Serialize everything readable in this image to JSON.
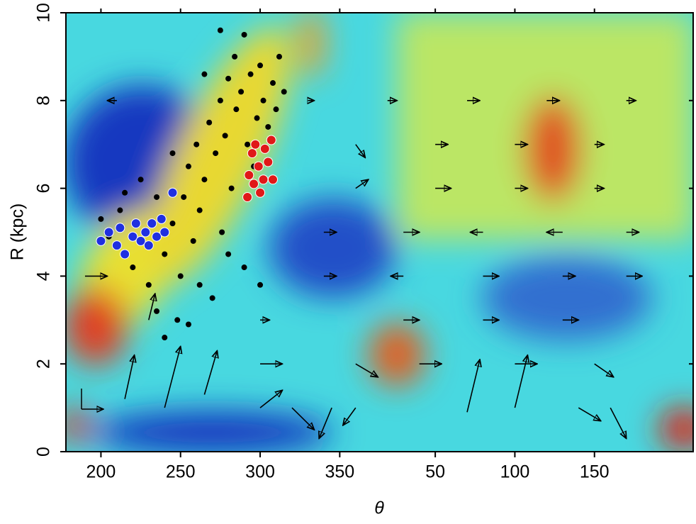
{
  "chart_data": {
    "type": "scatter",
    "xlabel": "θ",
    "ylabel": "R (kpc)",
    "xlim": [
      178,
      572
    ],
    "ylim": [
      0,
      10
    ],
    "xticks": [
      200,
      250,
      300,
      350,
      {
        "value": 410,
        "label": "50"
      },
      {
        "value": 460,
        "label": "100"
      },
      {
        "value": 510,
        "label": "150"
      }
    ],
    "yticks": [
      0,
      2,
      4,
      6,
      8,
      10
    ],
    "vectors": {
      "color": "#000000",
      "x": [
        210,
        330,
        380,
        430,
        480,
        530,
        360,
        410,
        460,
        510,
        360,
        410,
        460,
        510,
        340,
        390,
        440,
        490,
        530,
        190,
        340,
        390,
        440,
        490,
        530,
        230,
        300,
        390,
        440,
        490,
        300,
        360,
        400,
        460,
        510,
        215,
        240,
        265,
        300,
        320,
        345,
        360,
        430,
        460,
        500,
        520
      ],
      "y": [
        8,
        8,
        8,
        8,
        8,
        8,
        7,
        7,
        7,
        7,
        6,
        6,
        6,
        6,
        5,
        5,
        5,
        5,
        5,
        4,
        4,
        4,
        4,
        4,
        4,
        3,
        3,
        3,
        3,
        3,
        2,
        2,
        2,
        2,
        2,
        1.2,
        1.0,
        1.3,
        1.0,
        1.0,
        1.0,
        1.0,
        0.9,
        1.0,
        1.0,
        1.0
      ],
      "dx": [
        -6,
        4,
        6,
        8,
        8,
        6,
        6,
        8,
        8,
        6,
        8,
        10,
        8,
        6,
        8,
        10,
        -8,
        -10,
        8,
        14,
        8,
        -8,
        10,
        8,
        10,
        4,
        6,
        10,
        10,
        10,
        14,
        14,
        14,
        14,
        12,
        6,
        10,
        8,
        14,
        14,
        -8,
        -8,
        8,
        8,
        14,
        10
      ],
      "dy": [
        0,
        0,
        0,
        0,
        0,
        0,
        -0.3,
        0,
        0,
        0,
        0.2,
        0,
        0,
        0,
        0,
        0,
        0,
        0,
        0,
        0,
        0,
        0,
        0,
        0,
        0,
        0.6,
        0,
        0,
        0,
        0,
        0,
        -0.3,
        0,
        0,
        -0.3,
        1.0,
        1.4,
        1.0,
        0.4,
        -0.5,
        -0.7,
        -0.4,
        1.2,
        1.2,
        -0.3,
        -0.7
      ]
    },
    "series": [
      {
        "color": "#000000",
        "x": [
          212,
          220,
          225,
          230,
          235,
          240,
          245,
          248,
          250,
          252,
          255,
          258,
          260,
          262,
          265,
          268,
          270,
          272,
          275,
          276,
          278,
          280,
          282,
          284,
          285,
          288,
          290,
          292,
          294,
          296,
          298,
          300,
          302,
          305,
          308,
          310,
          312,
          315,
          280,
          262,
          240,
          255,
          290,
          300,
          205,
          215,
          225,
          235,
          200,
          245,
          265,
          275
        ],
        "y": [
          5.5,
          4.2,
          4.8,
          3.8,
          3.2,
          4.5,
          5.2,
          3.0,
          4.0,
          5.8,
          6.5,
          4.8,
          7.0,
          5.5,
          6.2,
          7.5,
          3.5,
          6.8,
          8.0,
          5.0,
          7.2,
          8.5,
          6.0,
          9.0,
          7.8,
          8.2,
          9.5,
          7.0,
          8.6,
          6.5,
          7.6,
          8.8,
          8.0,
          7.4,
          8.4,
          7.8,
          9.0,
          8.2,
          4.5,
          3.8,
          2.6,
          2.9,
          4.2,
          3.8,
          4.9,
          5.9,
          6.2,
          5.8,
          5.3,
          6.8,
          8.6,
          9.6
        ]
      },
      {
        "color": "#2030e0",
        "x": [
          200,
          205,
          210,
          212,
          215,
          220,
          222,
          225,
          228,
          230,
          232,
          235,
          238,
          240,
          245
        ],
        "y": [
          4.8,
          5.0,
          4.7,
          5.1,
          4.5,
          4.9,
          5.2,
          4.8,
          5.0,
          4.7,
          5.2,
          4.9,
          5.3,
          5.0,
          5.9
        ]
      },
      {
        "color": "#e01818",
        "x": [
          293,
          295,
          297,
          299,
          300,
          302,
          305,
          307,
          308,
          292,
          296,
          303
        ],
        "y": [
          6.3,
          6.8,
          7.0,
          6.5,
          5.9,
          6.2,
          6.6,
          7.1,
          6.2,
          5.8,
          6.1,
          6.9
        ]
      }
    ]
  }
}
